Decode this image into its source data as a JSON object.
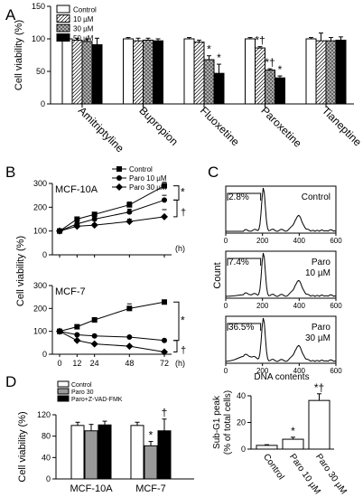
{
  "panels": {
    "a": "A",
    "b": "B",
    "c": "C",
    "d": "D"
  },
  "chart_data": [
    {
      "panel": "A",
      "type": "bar",
      "ylabel": "Cell viability (%)",
      "ylim": [
        0,
        150
      ],
      "yticks": [
        "0",
        "50",
        "100",
        "150"
      ],
      "categories": [
        "Amitriptyline",
        "Bupropion",
        "Fluoxetine",
        "Paroxetine",
        "Tianeptine"
      ],
      "legend_position": "top-left",
      "series": [
        {
          "name": "Control",
          "fill": "#ffffff",
          "pattern": "none",
          "values": [
            100,
            100,
            100,
            100,
            100
          ],
          "errors": [
            2,
            2,
            2,
            2,
            2
          ]
        },
        {
          "name": "10 µM",
          "fill": "#ffffff",
          "pattern": "diagonal",
          "values": [
            98,
            97,
            95,
            86,
            97
          ],
          "errors": [
            3,
            4,
            3,
            2,
            12
          ]
        },
        {
          "name": "30 µM",
          "fill": "#aaaaaa",
          "pattern": "crosshatch",
          "values": [
            96,
            98,
            68,
            52,
            97
          ],
          "errors": [
            4,
            3,
            6,
            2,
            5
          ]
        },
        {
          "name": "50 µM",
          "fill": "#000000",
          "pattern": "none",
          "values": [
            91,
            97,
            47,
            40,
            98
          ],
          "errors": [
            10,
            3,
            14,
            3,
            5
          ]
        }
      ],
      "annotations": [
        {
          "category": "Fluoxetine",
          "series": "30 µM",
          "text": "*"
        },
        {
          "category": "Fluoxetine",
          "series": "50 µM",
          "text": "*"
        },
        {
          "category": "Paroxetine",
          "series": "10 µM",
          "text": "*†"
        },
        {
          "category": "Paroxetine",
          "series": "30 µM",
          "text": "*†"
        },
        {
          "category": "Paroxetine",
          "series": "50 µM",
          "text": "*"
        }
      ]
    },
    {
      "panel": "B",
      "type": "line",
      "title": "MCF-10A",
      "ylabel": "Cell viability (%)",
      "xlabel": "(h)",
      "x": [
        0,
        12,
        24,
        48,
        72
      ],
      "ylim": [
        0,
        300
      ],
      "yticks": [
        "0",
        "100",
        "200",
        "300"
      ],
      "series": [
        {
          "name": "Control",
          "marker": "square",
          "values": [
            100,
            150,
            170,
            210,
            290
          ],
          "errors": [
            3,
            6,
            8,
            12,
            15
          ]
        },
        {
          "name": "Paro 10 µM",
          "marker": "circle",
          "values": [
            100,
            130,
            150,
            180,
            230
          ],
          "errors": [
            3,
            5,
            6,
            12,
            20
          ]
        },
        {
          "name": "Paro 30 µM",
          "marker": "diamond",
          "values": [
            100,
            120,
            125,
            140,
            160
          ],
          "errors": [
            3,
            5,
            6,
            10,
            30
          ]
        }
      ],
      "annotations": [
        "*",
        "†"
      ]
    },
    {
      "panel": "B",
      "type": "line",
      "title": "MCF-7",
      "xlabel": "(h)",
      "x": [
        0,
        12,
        24,
        48,
        72
      ],
      "ylim": [
        0,
        300
      ],
      "yticks": [
        "0",
        "100",
        "200",
        "300"
      ],
      "xticks": [
        "0",
        "12",
        "24",
        "48",
        "72"
      ],
      "series": [
        {
          "name": "Control",
          "marker": "square",
          "values": [
            100,
            120,
            150,
            200,
            228
          ],
          "errors": [
            3,
            5,
            8,
            20,
            6
          ]
        },
        {
          "name": "Paro 10 µM",
          "marker": "circle",
          "values": [
            100,
            85,
            80,
            75,
            60
          ],
          "errors": [
            3,
            4,
            4,
            4,
            4
          ]
        },
        {
          "name": "Paro 30 µM",
          "marker": "diamond",
          "values": [
            100,
            60,
            45,
            35,
            10
          ],
          "errors": [
            3,
            4,
            4,
            3,
            3
          ]
        }
      ],
      "annotations": [
        "*",
        "†"
      ]
    },
    {
      "panel": "C",
      "type": "area",
      "ylabel": "Count",
      "xlabel": "DNA contents",
      "xticks": [
        "0",
        "200",
        "400",
        "600"
      ],
      "histograms": [
        {
          "condition": [
            "Control"
          ],
          "percent": "2.8%"
        },
        {
          "condition": [
            "Paro",
            "10 µM"
          ],
          "percent": "7.4%"
        },
        {
          "condition": [
            "Paro",
            "30 µM"
          ],
          "percent": "36.5%"
        }
      ]
    },
    {
      "panel": "C",
      "type": "bar",
      "ylabel_lines": [
        "Sub-G1 peak",
        "(% of total cells)"
      ],
      "categories": [
        "Control",
        "Paro 10 µM",
        "Paro 30 µM"
      ],
      "values": [
        2.8,
        7.4,
        36.5
      ],
      "errors": [
        0.5,
        1.5,
        5
      ],
      "ylim": [
        0,
        40
      ],
      "yticks": [
        "0",
        "20",
        "40"
      ],
      "annotations": [
        "",
        "*",
        "*†"
      ]
    },
    {
      "panel": "D",
      "type": "bar",
      "ylabel": "Cell viability (%)",
      "ylim": [
        0,
        120
      ],
      "yticks": [
        "0",
        "40",
        "80",
        "120"
      ],
      "categories": [
        "MCF-10A",
        "MCF-7"
      ],
      "series": [
        {
          "name": "Control",
          "fill": "#ffffff",
          "values": [
            100,
            100
          ],
          "errors": [
            6,
            6
          ]
        },
        {
          "name": "Paro 30",
          "fill": "#9a9a9a",
          "values": [
            90,
            62
          ],
          "errors": [
            12,
            8
          ]
        },
        {
          "name": "Paro+Z-VAD-FMK",
          "fill": "#000000",
          "values": [
            101,
            90
          ],
          "errors": [
            7,
            22
          ]
        }
      ],
      "annotations": [
        "",
        "*",
        "†"
      ]
    }
  ]
}
